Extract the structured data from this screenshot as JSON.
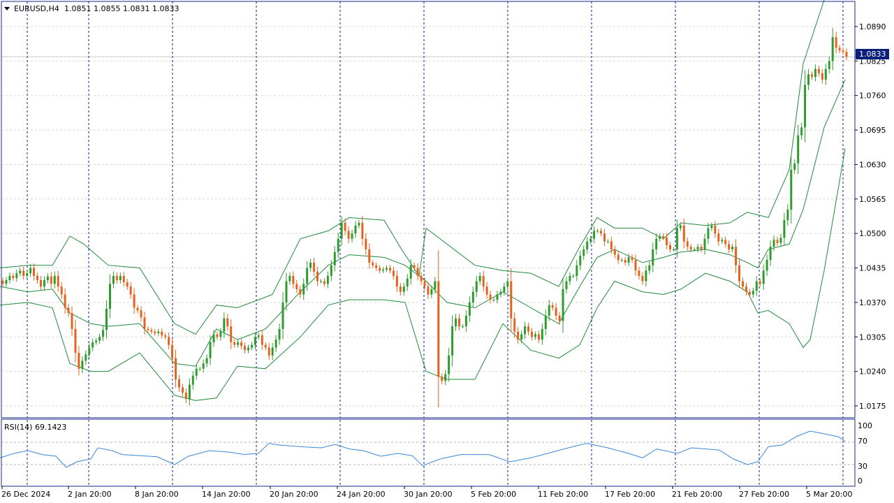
{
  "header": {
    "menu_icon": "triangle-down-icon",
    "symbol": "EURUSD,H4",
    "ohlc": "1.0851 1.0855 1.0831 1.0833"
  },
  "price_axis": {
    "ticks": [
      "1.0890",
      "1.0825",
      "1.0760",
      "1.0695",
      "1.0630",
      "1.0565",
      "1.0500",
      "1.0435",
      "1.0370",
      "1.0305",
      "1.0240",
      "1.0175"
    ],
    "current_price": "1.0833"
  },
  "time_axis": {
    "labels": [
      "26 Dec 2024",
      "2 Jan 20:00",
      "8 Jan 20:00",
      "14 Jan 20:00",
      "20 Jan 20:00",
      "24 Jan 20:00",
      "30 Jan 20:00",
      "5 Feb 20:00",
      "11 Feb 20:00",
      "17 Feb 20:00",
      "21 Feb 20:00",
      "27 Feb 20:00",
      "5 Mar 20:00"
    ]
  },
  "rsi": {
    "label": "RSI(14) 69.1423",
    "ticks": [
      "100",
      "70",
      "30",
      "0"
    ],
    "levels": [
      70,
      30
    ]
  },
  "colors": {
    "bull_candle": "#2e9b2e",
    "bear_candle": "#e4621d",
    "bands": "#1f8a3a",
    "rsi_line": "#3a86d6",
    "period_separator": "#0a1a8f",
    "price_tag_bg": "#0b1f7a",
    "frame": "#1a2a8a",
    "grid": "#d9d9d9"
  },
  "chart_data": {
    "type": "candlestick",
    "symbol": "EURUSD",
    "timeframe": "H4",
    "ylim": [
      1.015,
      1.094
    ],
    "close": [
      1.0405,
      1.0412,
      1.042,
      1.0416,
      1.0425,
      1.043,
      1.042,
      1.0425,
      1.0435,
      1.042,
      1.0412,
      1.04,
      1.0412,
      1.0419,
      1.0405,
      1.042,
      1.04,
      1.0385,
      1.036,
      1.035,
      1.032,
      1.0275,
      1.0245,
      1.026,
      1.0272,
      1.0285,
      1.0295,
      1.0298,
      1.0305,
      1.0318,
      1.0358,
      1.0405,
      1.042,
      1.0412,
      1.042,
      1.0408,
      1.04,
      1.0385,
      1.036,
      1.0355,
      1.0342,
      1.032,
      1.0318,
      1.0315,
      1.0312,
      1.0315,
      1.0308,
      1.0305,
      1.029,
      1.0265,
      1.0225,
      1.021,
      1.02,
      1.0188,
      1.0215,
      1.0232,
      1.0245,
      1.0245,
      1.0255,
      1.0265,
      1.0295,
      1.031,
      1.0305,
      1.0315,
      1.034,
      1.0325,
      1.0295,
      1.029,
      1.0295,
      1.0288,
      1.028,
      1.0285,
      1.029,
      1.0305,
      1.0308,
      1.029,
      1.0285,
      1.027,
      1.0285,
      1.03,
      1.032,
      1.037,
      1.041,
      1.042,
      1.0405,
      1.0395,
      1.0385,
      1.0405,
      1.0435,
      1.0445,
      1.0428,
      1.041,
      1.041,
      1.0405,
      1.042,
      1.044,
      1.0465,
      1.049,
      1.052,
      1.0505,
      1.049,
      1.05,
      1.0515,
      1.052,
      1.049,
      1.047,
      1.0445,
      1.044,
      1.0435,
      1.043,
      1.0432,
      1.0435,
      1.043,
      1.042,
      1.04,
      1.039,
      1.04,
      1.0415,
      1.044,
      1.0435,
      1.042,
      1.041,
      1.04,
      1.0385,
      1.0395,
      1.041,
      1.023,
      1.0222,
      1.0235,
      1.027,
      1.0325,
      1.034,
      1.0325,
      1.0325,
      1.0345,
      1.037,
      1.039,
      1.041,
      1.042,
      1.04,
      1.0385,
      1.0375,
      1.0375,
      1.0385,
      1.039,
      1.04,
      1.041,
      1.034,
      1.0315,
      1.03,
      1.031,
      1.0325,
      1.0315,
      1.0305,
      1.031,
      1.03,
      1.032,
      1.0345,
      1.0365,
      1.036,
      1.0345,
      1.0335,
      1.0395,
      1.041,
      1.042,
      1.042,
      1.044,
      1.0458,
      1.047,
      1.0485,
      1.049,
      1.0505,
      1.0505,
      1.05,
      1.0485,
      1.0485,
      1.047,
      1.046,
      1.045,
      1.045,
      1.0445,
      1.0455,
      1.045,
      1.043,
      1.042,
      1.041,
      1.043,
      1.044,
      1.047,
      1.049,
      1.0495,
      1.0492,
      1.0478,
      1.047,
      1.047,
      1.051,
      1.0515,
      1.0485,
      1.0475,
      1.047,
      1.047,
      1.0475,
      1.047,
      1.049,
      1.051,
      1.0515,
      1.05,
      1.0485,
      1.0488,
      1.048,
      1.047,
      1.0475,
      1.044,
      1.041,
      1.04,
      1.039,
      1.0385,
      1.0392,
      1.041,
      1.0405,
      1.043,
      1.045,
      1.0475,
      1.0488,
      1.0482,
      1.0492,
      1.0525,
      1.0545,
      1.062,
      1.0632,
      1.0685,
      1.07,
      1.078,
      1.08,
      1.0795,
      1.081,
      1.0802,
      1.079,
      1.081,
      1.0825,
      1.087,
      1.085,
      1.0845,
      1.0842,
      1.0833
    ],
    "bollinger_bands": {
      "upper": [
        [
          0,
          1.0435
        ],
        [
          40,
          1.044
        ],
        [
          75,
          1.044
        ],
        [
          100,
          1.0495
        ],
        [
          120,
          1.048
        ],
        [
          155,
          1.044
        ],
        [
          200,
          1.0435
        ],
        [
          250,
          1.033
        ],
        [
          280,
          1.031
        ],
        [
          310,
          1.0365
        ],
        [
          340,
          1.036
        ],
        [
          390,
          1.0385
        ],
        [
          430,
          1.049
        ],
        [
          470,
          1.0505
        ],
        [
          500,
          1.053
        ],
        [
          550,
          1.0525
        ],
        [
          575,
          1.047
        ],
        [
          600,
          1.042
        ],
        [
          610,
          1.051
        ],
        [
          640,
          1.048
        ],
        [
          680,
          1.044
        ],
        [
          720,
          1.043
        ],
        [
          760,
          1.0425
        ],
        [
          800,
          1.04
        ],
        [
          830,
          1.0475
        ],
        [
          855,
          1.053
        ],
        [
          880,
          1.051
        ],
        [
          920,
          1.051
        ],
        [
          950,
          1.049
        ],
        [
          975,
          1.052
        ],
        [
          1010,
          1.0515
        ],
        [
          1045,
          1.052
        ],
        [
          1070,
          1.054
        ],
        [
          1085,
          1.0535
        ],
        [
          1100,
          1.053
        ],
        [
          1130,
          1.062
        ],
        [
          1150,
          1.082
        ],
        [
          1180,
          1.094
        ],
        [
          1200,
          1.096
        ],
        [
          1210,
          1.0945
        ]
      ],
      "middle": [
        [
          0,
          1.04
        ],
        [
          40,
          1.039
        ],
        [
          75,
          1.0395
        ],
        [
          100,
          1.035
        ],
        [
          130,
          1.033
        ],
        [
          155,
          1.0325
        ],
        [
          200,
          1.033
        ],
        [
          250,
          1.0255
        ],
        [
          280,
          1.025
        ],
        [
          310,
          1.032
        ],
        [
          340,
          1.03
        ],
        [
          380,
          1.032
        ],
        [
          430,
          1.039
        ],
        [
          470,
          1.044
        ],
        [
          500,
          1.046
        ],
        [
          550,
          1.0455
        ],
        [
          580,
          1.044
        ],
        [
          610,
          1.041
        ],
        [
          640,
          1.037
        ],
        [
          680,
          1.036
        ],
        [
          720,
          1.039
        ],
        [
          760,
          1.036
        ],
        [
          800,
          1.033
        ],
        [
          830,
          1.04
        ],
        [
          855,
          1.0455
        ],
        [
          880,
          1.047
        ],
        [
          920,
          1.0445
        ],
        [
          950,
          1.0455
        ],
        [
          975,
          1.0465
        ],
        [
          1010,
          1.047
        ],
        [
          1045,
          1.046
        ],
        [
          1070,
          1.0445
        ],
        [
          1085,
          1.0435
        ],
        [
          1100,
          1.047
        ],
        [
          1130,
          1.048
        ],
        [
          1150,
          1.0545
        ],
        [
          1180,
          1.07
        ],
        [
          1210,
          1.079
        ]
      ],
      "lower": [
        [
          0,
          1.0365
        ],
        [
          40,
          1.037
        ],
        [
          75,
          1.036
        ],
        [
          100,
          1.0255
        ],
        [
          130,
          1.024
        ],
        [
          155,
          1.024
        ],
        [
          200,
          1.0275
        ],
        [
          250,
          1.0195
        ],
        [
          280,
          1.0185
        ],
        [
          310,
          1.019
        ],
        [
          340,
          1.025
        ],
        [
          380,
          1.0245
        ],
        [
          430,
          1.0305
        ],
        [
          470,
          1.0365
        ],
        [
          500,
          1.0375
        ],
        [
          550,
          1.0375
        ],
        [
          580,
          1.037
        ],
        [
          610,
          1.024
        ],
        [
          640,
          1.0225
        ],
        [
          680,
          1.0225
        ],
        [
          720,
          1.033
        ],
        [
          760,
          1.028
        ],
        [
          800,
          1.0265
        ],
        [
          830,
          1.029
        ],
        [
          855,
          1.036
        ],
        [
          880,
          1.041
        ],
        [
          920,
          1.039
        ],
        [
          950,
          1.0385
        ],
        [
          975,
          1.0395
        ],
        [
          1010,
          1.0425
        ],
        [
          1045,
          1.041
        ],
        [
          1070,
          1.039
        ],
        [
          1085,
          1.035
        ],
        [
          1100,
          1.0355
        ],
        [
          1130,
          1.033
        ],
        [
          1150,
          1.0285
        ],
        [
          1160,
          1.03
        ],
        [
          1180,
          1.043
        ],
        [
          1210,
          1.066
        ]
      ]
    },
    "period_separators_x": [
      39,
      127,
      247,
      367,
      487,
      607,
      727,
      847,
      967,
      1087,
      1207
    ],
    "rsi": {
      "name": "RSI(14)",
      "last": 69.1423,
      "ylim": [
        0,
        100
      ],
      "points": [
        [
          0,
          42
        ],
        [
          20,
          50
        ],
        [
          40,
          55
        ],
        [
          60,
          48
        ],
        [
          80,
          45
        ],
        [
          95,
          25
        ],
        [
          110,
          35
        ],
        [
          130,
          40
        ],
        [
          140,
          60
        ],
        [
          160,
          55
        ],
        [
          175,
          48
        ],
        [
          200,
          46
        ],
        [
          225,
          44
        ],
        [
          250,
          30
        ],
        [
          270,
          45
        ],
        [
          300,
          55
        ],
        [
          330,
          52
        ],
        [
          350,
          48
        ],
        [
          370,
          50
        ],
        [
          385,
          68
        ],
        [
          400,
          65
        ],
        [
          430,
          62
        ],
        [
          460,
          60
        ],
        [
          480,
          66
        ],
        [
          500,
          58
        ],
        [
          520,
          55
        ],
        [
          545,
          45
        ],
        [
          570,
          50
        ],
        [
          590,
          46
        ],
        [
          605,
          28
        ],
        [
          630,
          40
        ],
        [
          660,
          48
        ],
        [
          700,
          48
        ],
        [
          730,
          35
        ],
        [
          760,
          42
        ],
        [
          790,
          52
        ],
        [
          820,
          62
        ],
        [
          840,
          68
        ],
        [
          870,
          60
        ],
        [
          900,
          50
        ],
        [
          920,
          42
        ],
        [
          940,
          58
        ],
        [
          970,
          50
        ],
        [
          990,
          60
        ],
        [
          1010,
          58
        ],
        [
          1030,
          56
        ],
        [
          1050,
          40
        ],
        [
          1070,
          30
        ],
        [
          1085,
          35
        ],
        [
          1100,
          62
        ],
        [
          1120,
          65
        ],
        [
          1140,
          80
        ],
        [
          1160,
          90
        ],
        [
          1180,
          85
        ],
        [
          1200,
          80
        ],
        [
          1210,
          72
        ]
      ]
    }
  }
}
